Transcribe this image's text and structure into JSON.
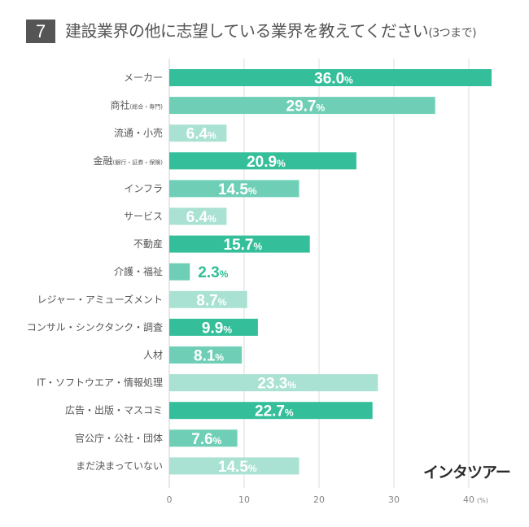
{
  "header": {
    "question_number": "7",
    "title": "建設業界の他に志望している業界を教えてください",
    "title_suffix": "(3つまで)"
  },
  "logo": {
    "text": "インタツアー"
  },
  "colors": {
    "dark": "#34bf9a",
    "mid": "#6fcfb6",
    "light": "#a9e2d2",
    "value_outside": "#2fbf96",
    "header_box": "#555555"
  },
  "chart_data": {
    "type": "bar",
    "orientation": "horizontal",
    "title": "建設業界の他に志望している業界を教えてください(3つまで)",
    "xlabel": "",
    "ylabel": "",
    "unit": "%",
    "xlim": [
      0,
      40
    ],
    "x_ticks": [
      "0",
      "10",
      "20",
      "30",
      "40"
    ],
    "x_unit_label": "(%)",
    "grid": true,
    "categories": [
      {
        "label": "メーカー",
        "sub": "",
        "value": 36.0,
        "shade": "dark"
      },
      {
        "label": "商社",
        "sub": "(総合・専門)",
        "value": 29.7,
        "shade": "mid"
      },
      {
        "label": "流通・小売",
        "sub": "",
        "value": 6.4,
        "shade": "light"
      },
      {
        "label": "金融",
        "sub": "(銀行・証券・保険)",
        "value": 20.9,
        "shade": "dark"
      },
      {
        "label": "インフラ",
        "sub": "",
        "value": 14.5,
        "shade": "mid"
      },
      {
        "label": "サービス",
        "sub": "",
        "value": 6.4,
        "shade": "light"
      },
      {
        "label": "不動産",
        "sub": "",
        "value": 15.7,
        "shade": "dark"
      },
      {
        "label": "介護・福祉",
        "sub": "",
        "value": 2.3,
        "shade": "mid"
      },
      {
        "label": "レジャー・アミューズメント",
        "sub": "",
        "value": 8.7,
        "shade": "light"
      },
      {
        "label": "コンサル・シンクタンク・調査",
        "sub": "",
        "value": 9.9,
        "shade": "dark"
      },
      {
        "label": "人材",
        "sub": "",
        "value": 8.1,
        "shade": "mid"
      },
      {
        "label": "IT・ソフトウエア・情報処理",
        "sub": "",
        "value": 23.3,
        "shade": "light"
      },
      {
        "label": "広告・出版・マスコミ",
        "sub": "",
        "value": 22.7,
        "shade": "dark"
      },
      {
        "label": "官公庁・公社・団体",
        "sub": "",
        "value": 7.6,
        "shade": "mid"
      },
      {
        "label": "まだ決まっていない",
        "sub": "",
        "value": 14.5,
        "shade": "light"
      }
    ],
    "value_labels": [
      "36.0%",
      "29.7%",
      "6.4%",
      "20.9%",
      "14.5%",
      "6.4%",
      "15.7%",
      "2.3%",
      "8.7%",
      "9.9%",
      "8.1%",
      "23.3%",
      "22.7%",
      "7.6%",
      "14.5%"
    ]
  }
}
